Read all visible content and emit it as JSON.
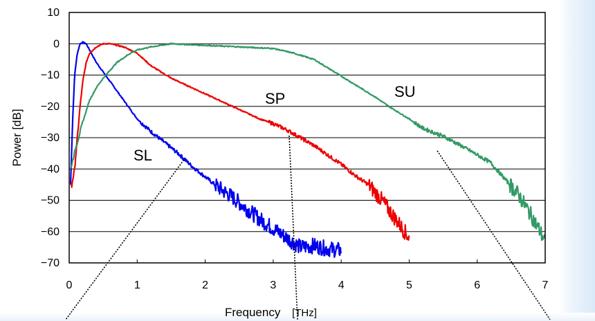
{
  "chart_data": {
    "type": "line",
    "title": "",
    "xlabel": "Frequency",
    "xlabel_unit": "[THz]",
    "ylabel": "Power [dB]",
    "xlim": [
      0,
      7
    ],
    "ylim": [
      -70,
      10
    ],
    "xticks": [
      0,
      1,
      2,
      3,
      4,
      5,
      6,
      7
    ],
    "yticks": [
      10,
      0,
      -10,
      -20,
      -30,
      -40,
      -50,
      -60,
      -70
    ],
    "grid": "horizontal",
    "legend": "none",
    "series": [
      {
        "name": "SL",
        "color": "#0000ee",
        "x": [
          0.02,
          0.05,
          0.08,
          0.12,
          0.16,
          0.2,
          0.25,
          0.3,
          0.4,
          0.5,
          0.6,
          0.8,
          1.0,
          1.2,
          1.4,
          1.6,
          1.8,
          2.0,
          2.2,
          2.4,
          2.6,
          2.8,
          3.0,
          3.2,
          3.4,
          3.6,
          3.8,
          4.0
        ],
        "y": [
          -45,
          -25,
          -10,
          -3,
          0,
          0.5,
          0,
          -2,
          -6,
          -9,
          -12,
          -18,
          -24,
          -28,
          -31.5,
          -35,
          -39,
          -42.5,
          -46,
          -49,
          -52.5,
          -56,
          -59,
          -62,
          -65,
          -64.5,
          -65.5,
          -66
        ]
      },
      {
        "name": "SP",
        "color": "#ee0000",
        "x": [
          0.03,
          0.08,
          0.12,
          0.16,
          0.2,
          0.25,
          0.3,
          0.4,
          0.5,
          0.6,
          0.8,
          1.0,
          1.2,
          1.5,
          1.8,
          2.0,
          2.2,
          2.4,
          2.6,
          2.8,
          3.0,
          3.2,
          3.4,
          3.6,
          3.8,
          4.0,
          4.2,
          4.4,
          4.6,
          4.8,
          5.0
        ],
        "y": [
          -46,
          -40,
          -30,
          -20,
          -12,
          -6,
          -3,
          -1,
          0,
          0,
          -1,
          -3,
          -7,
          -11,
          -14,
          -16,
          -18,
          -20,
          -22,
          -24,
          -25.5,
          -27.5,
          -30,
          -32.5,
          -35.5,
          -38.5,
          -42,
          -45,
          -50,
          -56,
          -62
        ]
      },
      {
        "name": "SU",
        "color": "#339966",
        "x": [
          0.02,
          0.1,
          0.2,
          0.3,
          0.4,
          0.5,
          0.7,
          0.9,
          1.0,
          1.2,
          1.5,
          2.0,
          2.5,
          3.0,
          3.3,
          3.6,
          3.9,
          4.2,
          4.5,
          4.7,
          5.0,
          5.2,
          5.5,
          5.8,
          6.0,
          6.2,
          6.4,
          6.6,
          6.8,
          7.0
        ],
        "y": [
          -40,
          -33,
          -25,
          -18,
          -14,
          -11,
          -6,
          -3,
          -2,
          -1,
          0,
          -0.5,
          -1,
          -1.5,
          -3,
          -5,
          -9,
          -13,
          -17,
          -20,
          -24,
          -27,
          -29.5,
          -33,
          -35.5,
          -38,
          -43,
          -48,
          -55,
          -63
        ]
      }
    ],
    "annotations": [
      "SL",
      "SP",
      "SU"
    ]
  }
}
